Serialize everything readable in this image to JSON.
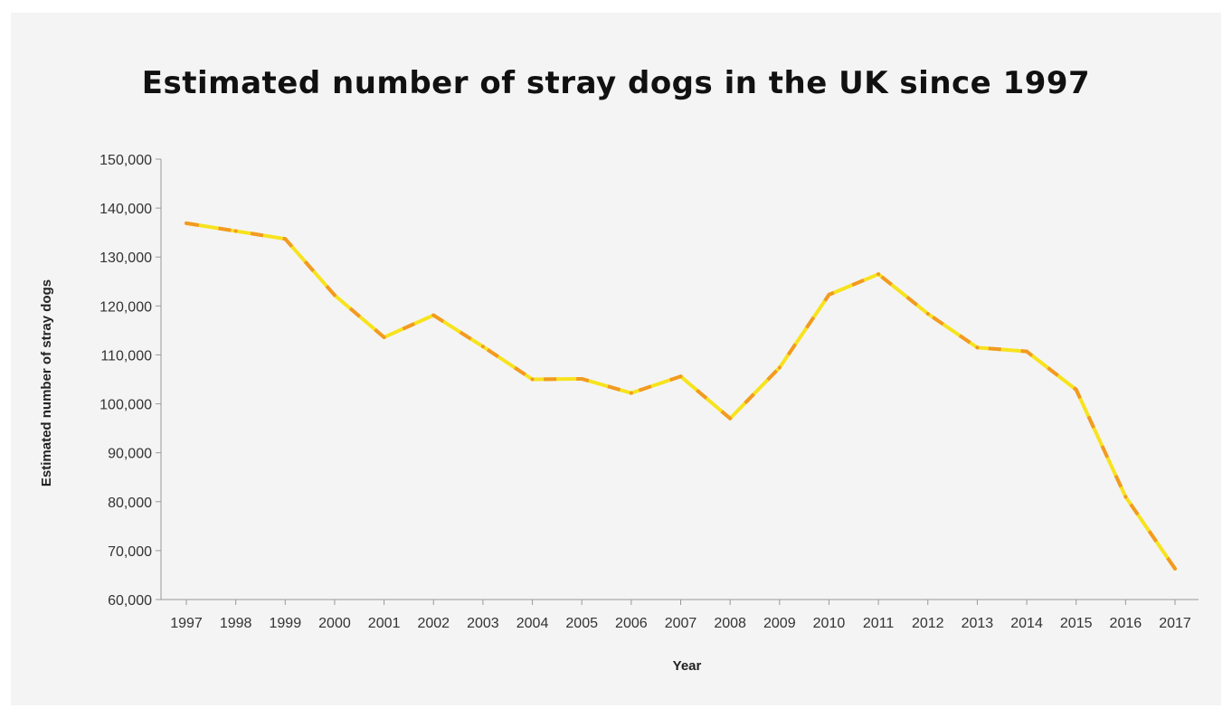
{
  "chart_data": {
    "type": "line",
    "title": "Estimated number of stray dogs in the UK since 1997",
    "xlabel": "Year",
    "ylabel": "Estimated number of stray dogs",
    "ylim": [
      60000,
      150000
    ],
    "yticks": [
      60000,
      70000,
      80000,
      90000,
      100000,
      110000,
      120000,
      130000,
      140000,
      150000
    ],
    "ytick_labels": [
      "60,000",
      "70,000",
      "80,000",
      "90,000",
      "100,000",
      "110,000",
      "120,000",
      "130,000",
      "140,000",
      "150,000"
    ],
    "x": [
      "1997",
      "1998",
      "1999",
      "2000",
      "2001",
      "2002",
      "2003",
      "2004",
      "2005",
      "2006",
      "2007",
      "2008",
      "2009",
      "2010",
      "2011",
      "2012",
      "2013",
      "2014",
      "2015",
      "2016",
      "2017"
    ],
    "series": [
      {
        "values": [
          136900,
          135300,
          133700,
          122200,
          113600,
          118100,
          111700,
          105000,
          105100,
          102200,
          105600,
          97000,
          107400,
          122300,
          126500,
          118400,
          111500,
          110700,
          102900,
          81000,
          66300
        ]
      }
    ],
    "grid": false,
    "legend": "none",
    "colors": {
      "line_main": "#f7e31e",
      "line_dash": "#f29a22",
      "axis": "#999999",
      "background": "#f4f4f4"
    }
  }
}
